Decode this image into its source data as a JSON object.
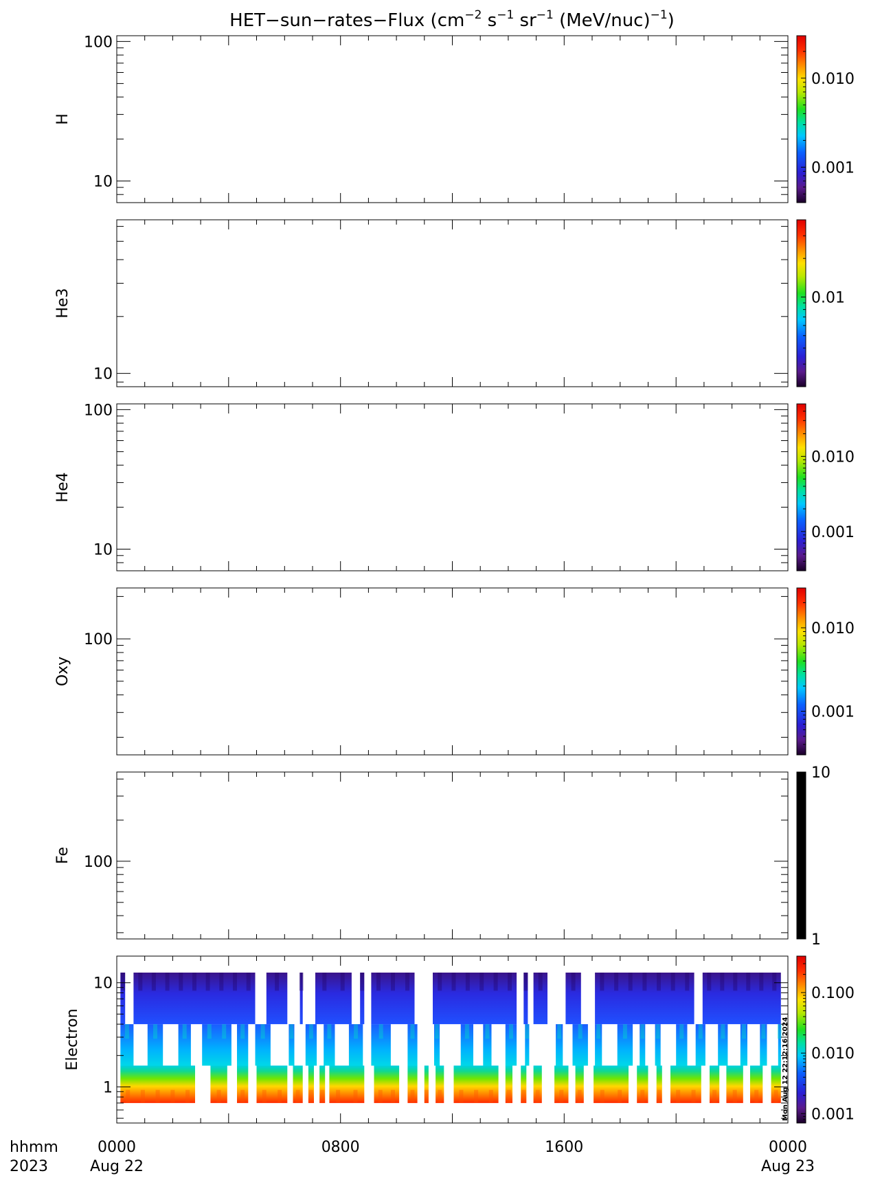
{
  "title": "HET−sun−rates−Flux (cm",
  "title_parts": {
    "sup1": "−2",
    "s": " s",
    "sup2": "−1",
    "sr": " sr",
    "sup3": "−1",
    "mev": " (MeV/nuc)",
    "sup4": "−1",
    "close": ")"
  },
  "footer": {
    "time_label": "hhmm",
    "year_label": "2023",
    "ticks": [
      {
        "time": "0000",
        "date": "Aug 22",
        "hour": 0
      },
      {
        "time": "0800",
        "date": "",
        "hour": 8
      },
      {
        "time": "1600",
        "date": "",
        "hour": 16
      },
      {
        "time": "0000",
        "date": "Aug 23",
        "hour": 24
      }
    ]
  },
  "timestamp": "Mon Aug 12 22:12:16 2024",
  "colors": {
    "rainbow": [
      "#1a0028",
      "#5a1a8c",
      "#2b1fd4",
      "#0a60ff",
      "#00c8ff",
      "#00e0a0",
      "#20e020",
      "#b8e800",
      "#ffe000",
      "#ff9000",
      "#ff3000",
      "#e00000"
    ]
  },
  "chart_data": [
    {
      "type": "heatmap",
      "ylabel": "H",
      "y_scale": "log",
      "ylim": [
        7,
        110
      ],
      "y_ticks": [
        {
          "value": 10,
          "label": "10"
        },
        {
          "value": 100,
          "label": "100"
        }
      ],
      "colorbar": {
        "palette": "rainbow",
        "scale": "log",
        "range": [
          0.0004,
          0.03
        ],
        "ticks": [
          {
            "value": 0.001,
            "label": "0.001"
          },
          {
            "value": 0.01,
            "label": "0.010"
          }
        ]
      },
      "values": []
    },
    {
      "type": "heatmap",
      "ylabel": "He3",
      "y_scale": "log",
      "ylim": [
        8.5,
        65
      ],
      "y_ticks": [
        {
          "value": 10,
          "label": "10"
        }
      ],
      "colorbar": {
        "palette": "rainbow",
        "scale": "log",
        "range": [
          0.002,
          0.04
        ],
        "ticks": [
          {
            "value": 0.01,
            "label": "0.01"
          }
        ]
      },
      "values": []
    },
    {
      "type": "heatmap",
      "ylabel": "He4",
      "y_scale": "log",
      "ylim": [
        7,
        110
      ],
      "y_ticks": [
        {
          "value": 10,
          "label": "10"
        },
        {
          "value": 100,
          "label": "100"
        }
      ],
      "colorbar": {
        "palette": "rainbow",
        "scale": "log",
        "range": [
          0.0003,
          0.05
        ],
        "ticks": [
          {
            "value": 0.001,
            "label": "0.001"
          },
          {
            "value": 0.01,
            "label": "0.010"
          }
        ]
      },
      "values": []
    },
    {
      "type": "heatmap",
      "ylabel": "Oxy",
      "y_scale": "log",
      "ylim": [
        15,
        230
      ],
      "y_ticks": [
        {
          "value": 100,
          "label": "100"
        }
      ],
      "colorbar": {
        "palette": "rainbow",
        "scale": "log",
        "range": [
          0.0003,
          0.03
        ],
        "ticks": [
          {
            "value": 0.001,
            "label": "0.001"
          },
          {
            "value": 0.01,
            "label": "0.010"
          }
        ]
      },
      "values": []
    },
    {
      "type": "heatmap",
      "ylabel": "Fe",
      "y_scale": "log",
      "ylim": [
        27,
        450
      ],
      "y_ticks": [
        {
          "value": 100,
          "label": "100"
        }
      ],
      "colorbar": {
        "palette": "black",
        "scale": "log",
        "range": [
          1,
          10
        ],
        "ticks": [
          {
            "value": 1,
            "label": "1"
          },
          {
            "value": 10,
            "label": "10"
          }
        ]
      },
      "values": []
    },
    {
      "type": "heatmap",
      "ylabel": "Electron",
      "y_scale": "log",
      "ylim": [
        0.45,
        18
      ],
      "y_ticks": [
        {
          "value": 1,
          "label": "1"
        },
        {
          "value": 10,
          "label": "10"
        }
      ],
      "colorbar": {
        "palette": "rainbow",
        "scale": "log",
        "range": [
          0.0007,
          0.4
        ],
        "ticks": [
          {
            "value": 0.001,
            "label": "0.001"
          },
          {
            "value": 0.01,
            "label": "0.010"
          },
          {
            "value": 0.1,
            "label": "0.100"
          }
        ]
      },
      "energy_bands": [
        {
          "low": 0.7,
          "high": 1.6,
          "flux": 0.2
        },
        {
          "low": 1.6,
          "high": 4.0,
          "flux": 0.008
        },
        {
          "low": 4.0,
          "high": 12.5,
          "flux": 0.002
        }
      ],
      "coverage": [
        {
          "band": "low",
          "intervals": [
            [
              0.13,
              2.8
            ],
            [
              3.35,
              3.95
            ],
            [
              4.3,
              4.7
            ],
            [
              5.0,
              6.1
            ],
            [
              6.3,
              6.65
            ],
            [
              6.85,
              7.05
            ],
            [
              7.25,
              7.45
            ],
            [
              7.6,
              8.85
            ],
            [
              9.2,
              10.1
            ],
            [
              10.4,
              10.75
            ],
            [
              11.0,
              11.15
            ],
            [
              11.4,
              11.7
            ],
            [
              12.05,
              13.65
            ],
            [
              13.9,
              14.15
            ],
            [
              14.45,
              14.65
            ],
            [
              14.9,
              15.2
            ],
            [
              15.65,
              16.15
            ],
            [
              16.4,
              16.7
            ],
            [
              17.05,
              18.3
            ],
            [
              18.6,
              19.0
            ],
            [
              19.3,
              19.5
            ],
            [
              19.8,
              20.9
            ],
            [
              21.2,
              21.55
            ],
            [
              21.8,
              22.4
            ],
            [
              22.65,
              23.1
            ],
            [
              23.4,
              23.75
            ]
          ]
        },
        {
          "band": "mid",
          "intervals": [
            [
              0.13,
              0.6
            ],
            [
              1.1,
              1.65
            ],
            [
              2.2,
              2.65
            ],
            [
              3.05,
              4.1
            ],
            [
              4.3,
              4.7
            ],
            [
              4.95,
              5.5
            ],
            [
              6.15,
              6.35
            ],
            [
              6.75,
              7.15
            ],
            [
              7.4,
              7.8
            ],
            [
              8.3,
              8.8
            ],
            [
              9.1,
              9.8
            ],
            [
              10.4,
              10.75
            ],
            [
              11.35,
              11.55
            ],
            [
              12.3,
              12.75
            ],
            [
              13.1,
              13.4
            ],
            [
              13.9,
              14.3
            ],
            [
              14.6,
              14.75
            ],
            [
              15.7,
              15.95
            ],
            [
              16.3,
              16.85
            ],
            [
              17.1,
              17.35
            ],
            [
              17.9,
              18.45
            ],
            [
              18.7,
              18.9
            ],
            [
              19.25,
              19.45
            ],
            [
              20.0,
              20.4
            ],
            [
              20.7,
              21.05
            ],
            [
              21.5,
              21.85
            ],
            [
              22.3,
              22.55
            ],
            [
              23.0,
              23.25
            ],
            [
              23.65,
              23.75
            ]
          ]
        },
        {
          "band": "high",
          "intervals": [
            [
              0.13,
              0.3
            ],
            [
              0.6,
              4.95
            ],
            [
              5.35,
              6.1
            ],
            [
              6.55,
              6.65
            ],
            [
              7.1,
              8.4
            ],
            [
              8.7,
              8.85
            ],
            [
              9.1,
              10.65
            ],
            [
              11.3,
              14.3
            ],
            [
              14.55,
              14.7
            ],
            [
              14.9,
              15.4
            ],
            [
              16.05,
              16.6
            ],
            [
              17.1,
              20.65
            ],
            [
              20.95,
              23.75
            ]
          ]
        }
      ]
    }
  ]
}
